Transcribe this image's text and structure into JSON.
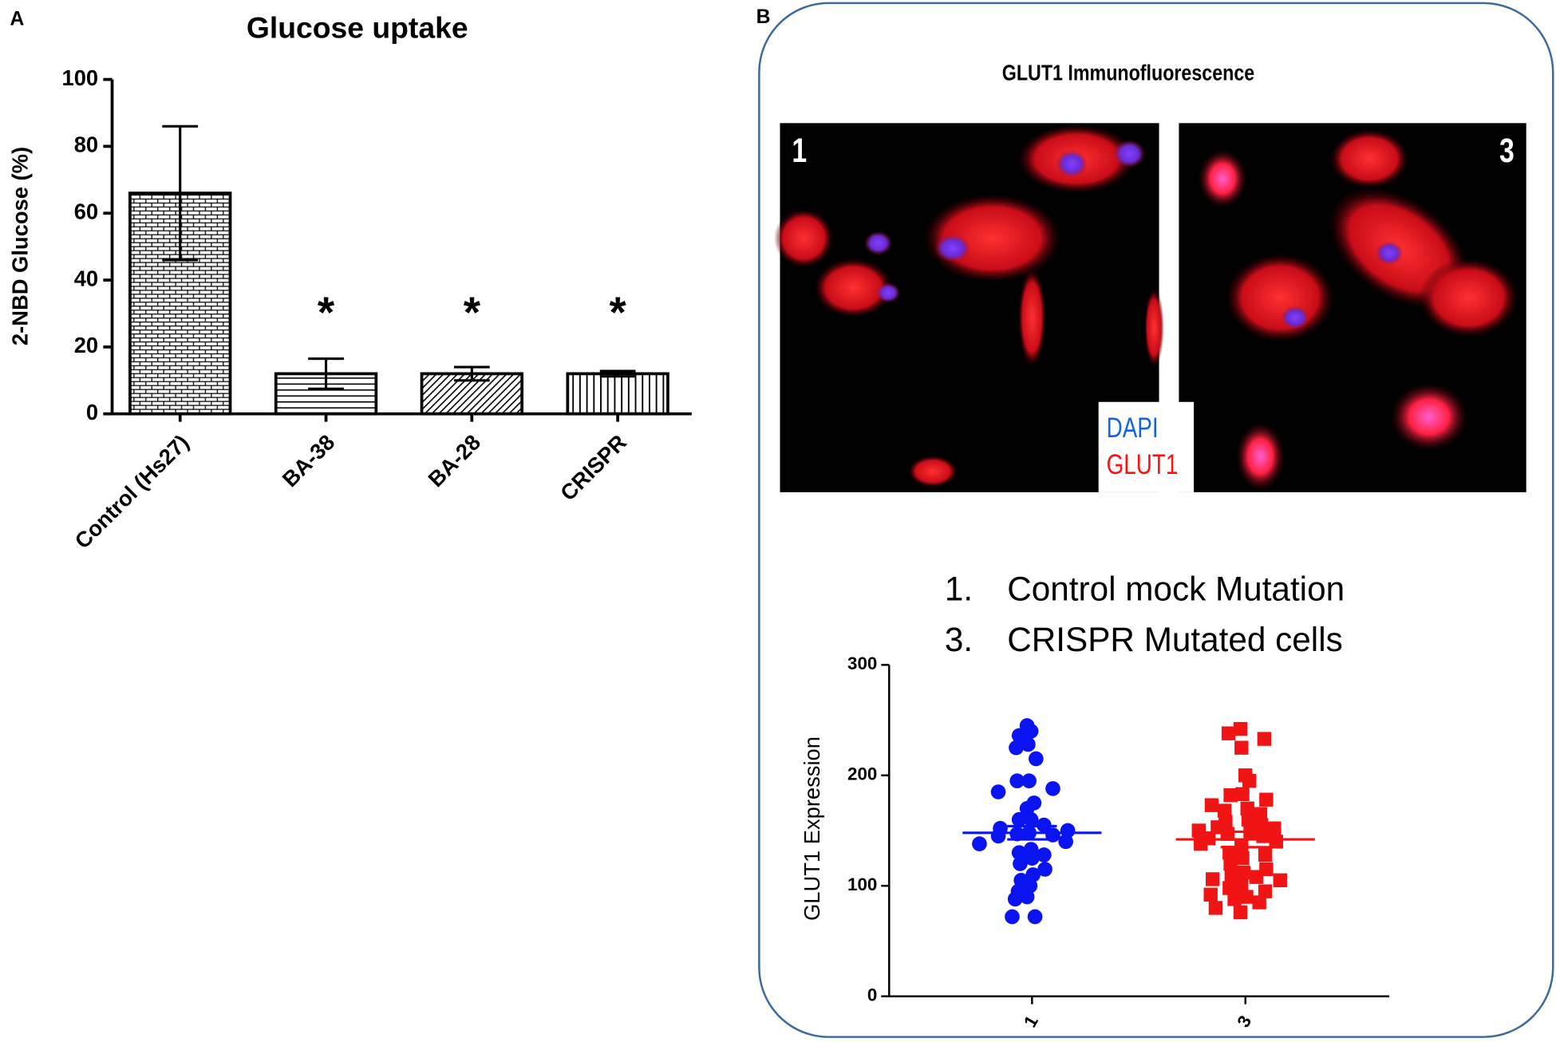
{
  "chart_data": [
    {
      "type": "bar",
      "panel": "A",
      "title": "Glucose uptake",
      "ylabel": "2-NBD Glucose (%)",
      "categories": [
        "Control (Hs27)",
        "BA-38",
        "BA-28",
        "CRISPR"
      ],
      "values": [
        66,
        12,
        12,
        12
      ],
      "errors": [
        20,
        4.5,
        2,
        0.8
      ],
      "annotations": [
        null,
        "*",
        "*",
        "*"
      ],
      "hatches": [
        "brick",
        "horizontal",
        "diagonal",
        "vertical"
      ],
      "ylim": [
        0,
        100
      ],
      "yticks": [
        0,
        20,
        40,
        60,
        80,
        100
      ]
    },
    {
      "type": "scatter",
      "ylabel": "GLUT1 Expression",
      "categories": [
        "1",
        "3"
      ],
      "series": [
        {
          "color": "#0a14f0",
          "marker": "circle",
          "values": [
            245,
            240,
            236,
            228,
            225,
            215,
            195,
            195,
            188,
            185,
            175,
            170,
            160,
            160,
            155,
            152,
            150,
            148,
            147,
            146,
            145,
            140,
            138,
            133,
            130,
            128,
            125,
            120,
            115,
            110,
            105,
            100,
            95,
            90,
            88,
            72,
            72
          ],
          "mean": 148,
          "error": 6
        },
        {
          "color": "#f01414",
          "marker": "square",
          "values": [
            242,
            238,
            233,
            225,
            200,
            195,
            183,
            182,
            178,
            173,
            170,
            168,
            165,
            160,
            158,
            155,
            153,
            152,
            150,
            148,
            147,
            145,
            143,
            140,
            138,
            135,
            130,
            128,
            125,
            120,
            115,
            112,
            110,
            108,
            106,
            105,
            100,
            98,
            95,
            92,
            90,
            88,
            85,
            80,
            76
          ],
          "mean": 142,
          "error": 7
        }
      ],
      "ylim": [
        0,
        300
      ],
      "yticks": [
        0,
        100,
        200,
        300
      ]
    }
  ],
  "micrographs": {
    "panel": "B",
    "title": "GLUT1 Immunofluorescence",
    "images": [
      "1",
      "3"
    ],
    "stains": [
      {
        "name": "DAPI",
        "color": "#1565d8"
      },
      {
        "name": "GLUT1",
        "color": "#ff1010"
      }
    ],
    "key": [
      {
        "number": "1.",
        "text": "Control mock Mutation"
      },
      {
        "number": "3.",
        "text": "CRISPR Mutated cells"
      }
    ]
  }
}
